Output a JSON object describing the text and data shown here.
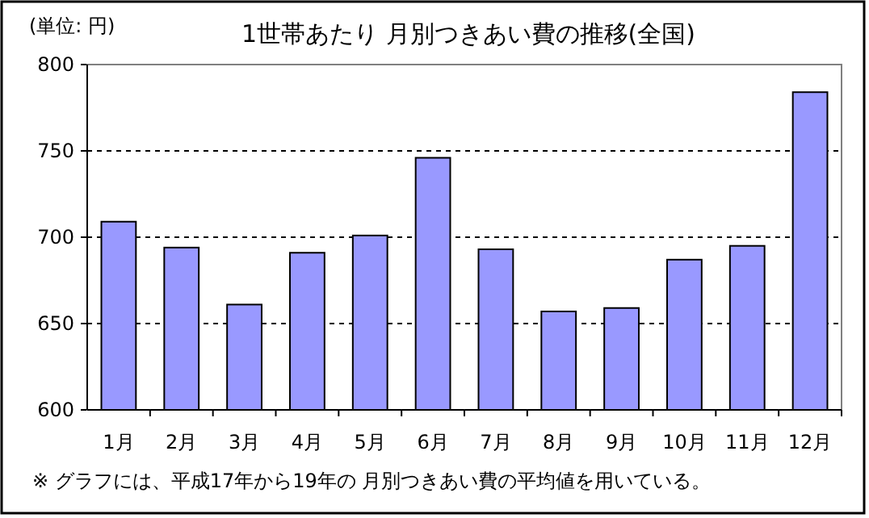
{
  "chart_data": {
    "type": "bar",
    "title": "1世帯あたり  月別つきあい費の推移(全国)",
    "ylabel": "(単位: 円)",
    "annotations": [
      "※  グラフには、平成17年から19年の 月別つきあい費の平均値を用いている。"
    ],
    "categories": [
      "1月",
      "2月",
      "3月",
      "4月",
      "5月",
      "6月",
      "7月",
      "8月",
      "9月",
      "10月",
      "11月",
      "12月"
    ],
    "values": [
      709,
      694,
      661,
      691,
      701,
      746,
      693,
      657,
      659,
      687,
      695,
      784
    ],
    "color": "#9999ff",
    "ylim": [
      600,
      800
    ],
    "yticks": [
      600,
      650,
      700,
      750,
      800
    ],
    "grid": "y"
  }
}
